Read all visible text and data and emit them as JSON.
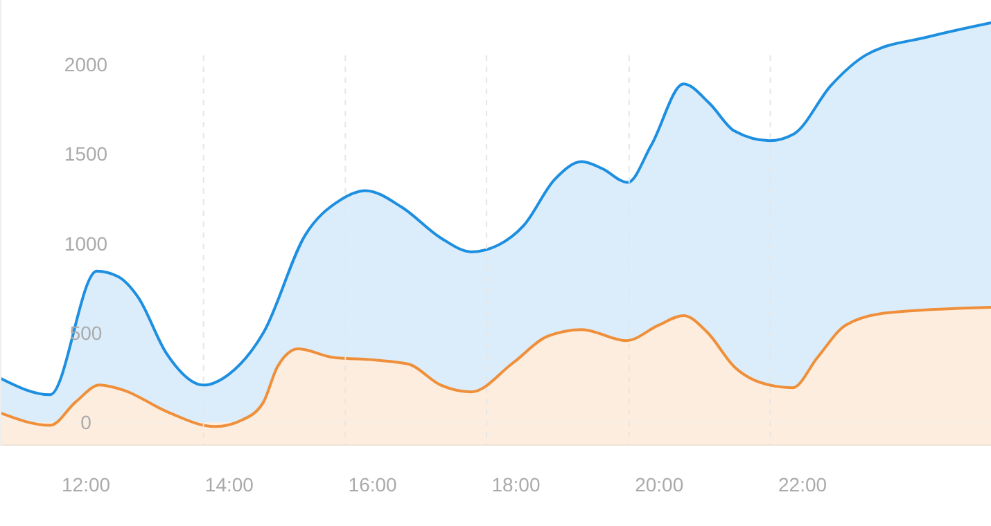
{
  "chart_data": {
    "type": "area",
    "xlim": [
      10.8,
      24.63
    ],
    "ylim": [
      -130,
      2360
    ],
    "xticks": [
      {
        "value": 12,
        "label": "12:00"
      },
      {
        "value": 14,
        "label": "14:00"
      },
      {
        "value": 16,
        "label": "16:00"
      },
      {
        "value": 18,
        "label": "18:00"
      },
      {
        "value": 20,
        "label": "20:00"
      },
      {
        "value": 22,
        "label": "22:00"
      }
    ],
    "yticks": [
      0,
      500,
      1000,
      1500,
      2000
    ],
    "grid": false,
    "line_style": "solid",
    "bands": [
      {
        "axis": "y",
        "from": -130,
        "to": 0,
        "color": "#fdeddf"
      }
    ],
    "ref_lines": [
      {
        "axis": "x",
        "value": 13.64,
        "color": "#e6e6e6",
        "line_style": "dashed"
      },
      {
        "axis": "x",
        "value": 15.62,
        "color": "#e6e6e6",
        "line_style": "dashed"
      },
      {
        "axis": "x",
        "value": 17.59,
        "color": "#e6e6e6",
        "line_style": "dashed"
      },
      {
        "axis": "x",
        "value": 19.58,
        "color": "#e6e6e6",
        "line_style": "dashed"
      },
      {
        "axis": "x",
        "value": 21.55,
        "color": "#e6e6e6",
        "line_style": "dashed"
      }
    ],
    "series": [
      {
        "color": "#1e8fe0",
        "x": [
          10.8,
          11.5,
          12.15,
          12.45,
          12.73,
          13.12,
          13.64,
          14.0,
          14.48,
          15.06,
          15.54,
          15.9,
          16.41,
          16.95,
          17.38,
          17.76,
          18.11,
          18.54,
          18.92,
          19.2,
          19.56,
          19.89,
          20.34,
          20.7,
          21.05,
          21.54,
          21.88,
          22.4,
          22.89,
          23.76,
          24.63
        ],
        "values": [
          248,
          155,
          845,
          814,
          698,
          388,
          209,
          271,
          504,
          1047,
          1240,
          1295,
          1202,
          1031,
          953,
          992,
          1101,
          1357,
          1457,
          1419,
          1341,
          1550,
          1891,
          1783,
          1628,
          1574,
          1612,
          1884,
          2054,
          2155,
          2233
        ]
      },
      {
        "color": "#ef8f3a",
        "x": [
          10.8,
          11.5,
          11.86,
          12.19,
          12.54,
          13.12,
          13.8,
          14.19,
          14.48,
          14.67,
          14.96,
          15.44,
          16.02,
          16.5,
          16.95,
          17.38,
          17.96,
          18.44,
          18.92,
          19.54,
          19.99,
          20.34,
          20.67,
          21.05,
          21.63,
          21.86,
          22.21,
          22.6,
          23.18,
          24.63
        ],
        "values": [
          54,
          -16,
          116,
          209,
          178,
          62,
          -23,
          16,
          116,
          310,
          411,
          364,
          349,
          326,
          209,
          171,
          333,
          481,
          519,
          457,
          543,
          597,
          504,
          310,
          202,
          194,
          364,
          543,
          612,
          643
        ]
      }
    ]
  }
}
